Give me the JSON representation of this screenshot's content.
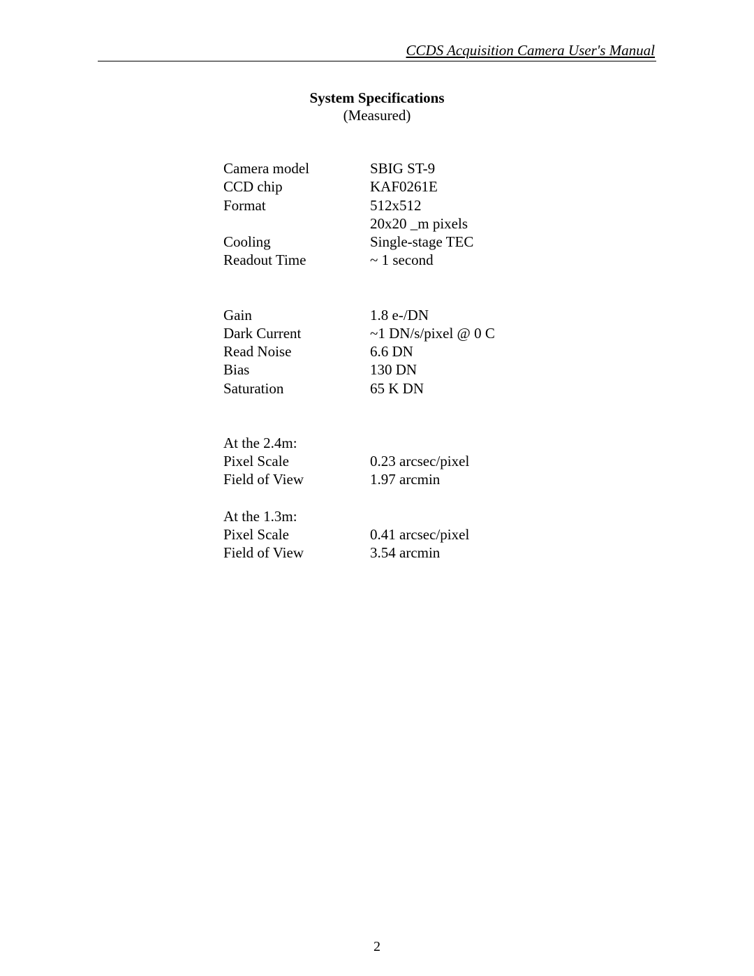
{
  "header": {
    "text": "CCDS Acquisition Camera User's Manual"
  },
  "title": "System Specifications",
  "subtitle": "(Measured)",
  "group1": [
    {
      "label": "Camera model",
      "value": "SBIG ST-9"
    },
    {
      "label": "CCD chip",
      "value": "KAF0261E"
    },
    {
      "label": "Format",
      "value": "512x512"
    },
    {
      "label": "",
      "value": "20x20 _m pixels"
    },
    {
      "label": "Cooling",
      "value": "Single-stage TEC"
    },
    {
      "label": "Readout Time",
      "value": "~ 1 second"
    }
  ],
  "group2": [
    {
      "label": "Gain",
      "value": "1.8 e-/DN"
    },
    {
      "label": "Dark Current",
      "value": "~1 DN/s/pixel @ 0 C"
    },
    {
      "label": "Read Noise",
      "value": "6.6 DN"
    },
    {
      "label": "Bias",
      "value": "130 DN"
    },
    {
      "label": "Saturation",
      "value": "65 K DN"
    }
  ],
  "group3_header": "At the 2.4m:",
  "group3": [
    {
      "label": "Pixel Scale",
      "value": "0.23 arcsec/pixel"
    },
    {
      "label": "Field of View",
      "value": "1.97 arcmin"
    }
  ],
  "group4_header": "At the 1.3m:",
  "group4": [
    {
      "label": "Pixel Scale",
      "value": "0.41 arcsec/pixel"
    },
    {
      "label": "Field of View",
      "value": "3.54 arcmin"
    }
  ],
  "page_number": "2"
}
